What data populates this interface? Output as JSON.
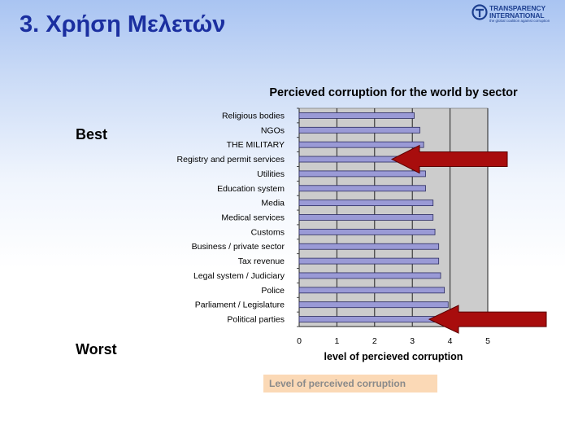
{
  "slide": {
    "title": "3. Χρήση Μελετών",
    "best_label": "Best",
    "worst_label": "Worst",
    "caption": "Level of perceived corruption"
  },
  "logo": {
    "line1": "TRANSPARENCY",
    "line2": "INTERNATIONAL",
    "tagline": "the global coalition against corruption",
    "icon": "globe-logo-icon",
    "color": "#1d3f8f"
  },
  "colors": {
    "title": "#1b2fa0",
    "bar_fill": "#9a9ad6",
    "bar_edge": "#2a2a60",
    "plot_bg": "#cccccc",
    "arrow": "#a80d0d"
  },
  "chart_data": {
    "type": "bar",
    "orientation": "horizontal",
    "title": "Percieved corruption for the world by sector",
    "xlabel": "level of percieved corruption",
    "ylabel": "",
    "xlim": [
      0,
      5
    ],
    "xticks": [
      "0",
      "1",
      "2",
      "3",
      "4",
      "5"
    ],
    "grid": "vertical",
    "categories": [
      "Religious bodies",
      "NGOs",
      "THE MILITARY",
      "Registry and permit services",
      "Utilities",
      "Education system",
      "Media",
      "Medical services",
      "Customs",
      "Business / private sector",
      "Tax revenue",
      "Legal system / Judiciary",
      "Police",
      "Parliament / Legislature",
      "Political parties"
    ],
    "values": [
      3.05,
      3.2,
      3.3,
      3.25,
      3.35,
      3.35,
      3.55,
      3.55,
      3.6,
      3.7,
      3.7,
      3.75,
      3.85,
      3.95,
      4.0
    ],
    "annotations": [
      {
        "type": "arrow",
        "points_to": "Registry and permit services"
      },
      {
        "type": "arrow",
        "points_to": "Political parties"
      }
    ]
  }
}
